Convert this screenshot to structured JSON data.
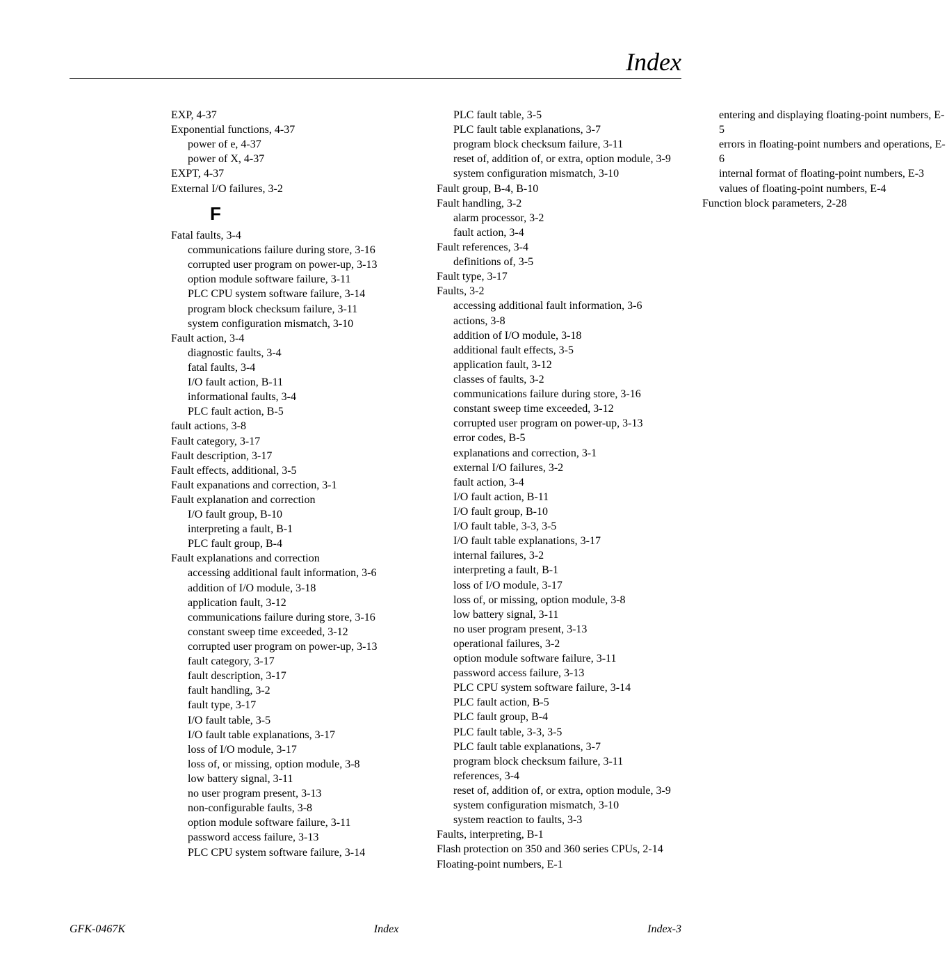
{
  "page": {
    "title": "Index",
    "footer_left": "GFK-0467K",
    "footer_center": "Index",
    "footer_right": "Index-3",
    "background_color": "#ffffff",
    "text_color": "#000000",
    "title_fontsize": 36,
    "body_fontsize": 16,
    "letter_fontsize": 26
  },
  "entries": [
    {
      "t": "entry",
      "text": "EXP, 4-37"
    },
    {
      "t": "entry",
      "text": "Exponential functions, 4-37"
    },
    {
      "t": "sub",
      "text": "power of e, 4-37"
    },
    {
      "t": "sub",
      "text": "power of X, 4-37"
    },
    {
      "t": "entry",
      "text": "EXPT, 4-37"
    },
    {
      "t": "entry",
      "text": "External I/O failures, 3-2"
    },
    {
      "t": "letter",
      "text": "F"
    },
    {
      "t": "entry",
      "text": "Fatal faults, 3-4"
    },
    {
      "t": "sub",
      "text": "communications failure during store, 3-16"
    },
    {
      "t": "sub",
      "text": "corrupted user program on power-up, 3-13"
    },
    {
      "t": "sub",
      "text": "option module software failure, 3-11"
    },
    {
      "t": "sub",
      "text": "PLC CPU system software failure, 3-14"
    },
    {
      "t": "sub",
      "text": "program block checksum failure, 3-11"
    },
    {
      "t": "sub",
      "text": "system configuration mismatch, 3-10"
    },
    {
      "t": "entry",
      "text": "Fault action, 3-4"
    },
    {
      "t": "sub",
      "text": "diagnostic faults, 3-4"
    },
    {
      "t": "sub",
      "text": "fatal faults, 3-4"
    },
    {
      "t": "sub",
      "text": "I/O fault action, B-11"
    },
    {
      "t": "sub",
      "text": "informational faults, 3-4"
    },
    {
      "t": "sub",
      "text": "PLC fault action, B-5"
    },
    {
      "t": "entry",
      "text": "fault actions, 3-8"
    },
    {
      "t": "entry",
      "text": "Fault category, 3-17"
    },
    {
      "t": "entry",
      "text": "Fault description, 3-17"
    },
    {
      "t": "entry",
      "text": "Fault effects, additional, 3-5"
    },
    {
      "t": "entry",
      "text": "Fault expanations and correction, 3-1"
    },
    {
      "t": "entry",
      "text": "Fault explanation and correction"
    },
    {
      "t": "sub",
      "text": "I/O fault group, B-10"
    },
    {
      "t": "sub",
      "text": "interpreting a fault, B-1"
    },
    {
      "t": "sub",
      "text": "PLC fault group, B-4"
    },
    {
      "t": "entry",
      "text": "Fault explanations and correction"
    },
    {
      "t": "sub",
      "text": "accessing additional fault information, 3-6"
    },
    {
      "t": "sub",
      "text": "addition of I/O module, 3-18"
    },
    {
      "t": "sub",
      "text": "application fault, 3-12"
    },
    {
      "t": "sub",
      "text": "communications failure during store, 3-16"
    },
    {
      "t": "sub",
      "text": "constant sweep time exceeded, 3-12"
    },
    {
      "t": "sub",
      "text": "corrupted user program on power-up, 3-13"
    },
    {
      "t": "sub",
      "text": "fault category, 3-17"
    },
    {
      "t": "sub",
      "text": "fault description, 3-17"
    },
    {
      "t": "sub",
      "text": "fault handling, 3-2"
    },
    {
      "t": "sub",
      "text": "fault type, 3-17"
    },
    {
      "t": "sub",
      "text": "I/O fault table, 3-5"
    },
    {
      "t": "sub",
      "text": "I/O fault table explanations, 3-17"
    },
    {
      "t": "sub",
      "text": "loss of I/O module, 3-17"
    },
    {
      "t": "sub",
      "text": "loss of, or missing, option module, 3-8"
    },
    {
      "t": "sub",
      "text": "low battery signal, 3-11"
    },
    {
      "t": "sub",
      "text": "no user program present, 3-13"
    },
    {
      "t": "sub",
      "text": "non-configurable faults, 3-8"
    },
    {
      "t": "sub",
      "text": "option module software failure, 3-11"
    },
    {
      "t": "sub",
      "text": "password access failure, 3-13"
    },
    {
      "t": "sub",
      "text": "PLC CPU system software failure, 3-14"
    },
    {
      "t": "sub",
      "text": "PLC fault table, 3-5"
    },
    {
      "t": "sub",
      "text": "PLC fault table explanations, 3-7"
    },
    {
      "t": "sub",
      "text": "program block checksum failure, 3-11"
    },
    {
      "t": "sub",
      "text": "reset of, addition of, or extra, option module, 3-9"
    },
    {
      "t": "sub",
      "text": "system configuration mismatch, 3-10"
    },
    {
      "t": "entry",
      "text": "Fault group, B-4, B-10"
    },
    {
      "t": "entry",
      "text": "Fault handling, 3-2"
    },
    {
      "t": "sub",
      "text": "alarm processor, 3-2"
    },
    {
      "t": "sub",
      "text": "fault action, 3-4"
    },
    {
      "t": "entry",
      "text": "Fault references, 3-4"
    },
    {
      "t": "sub",
      "text": "definitions of, 3-5"
    },
    {
      "t": "entry",
      "text": "Fault type, 3-17"
    },
    {
      "t": "entry",
      "text": "Faults, 3-2"
    },
    {
      "t": "sub",
      "text": "accessing additional fault information, 3-6"
    },
    {
      "t": "sub",
      "text": "actions, 3-8"
    },
    {
      "t": "sub",
      "text": "addition of I/O module, 3-18"
    },
    {
      "t": "sub",
      "text": "additional fault effects, 3-5"
    },
    {
      "t": "sub",
      "text": "application fault, 3-12"
    },
    {
      "t": "sub",
      "text": "classes of faults, 3-2"
    },
    {
      "t": "sub",
      "text": "communications failure during store, 3-16"
    },
    {
      "t": "sub",
      "text": "constant sweep time exceeded, 3-12"
    },
    {
      "t": "sub",
      "text": "corrupted user program on power-up, 3-13"
    },
    {
      "t": "sub",
      "text": "error codes, B-5"
    },
    {
      "t": "sub",
      "text": "explanations and correction, 3-1"
    },
    {
      "t": "sub",
      "text": "external I/O failures, 3-2"
    },
    {
      "t": "sub",
      "text": "fault action, 3-4"
    },
    {
      "t": "sub",
      "text": "I/O fault action, B-11"
    },
    {
      "t": "sub",
      "text": "I/O fault group, B-10"
    },
    {
      "t": "sub",
      "text": "I/O fault table, 3-3, 3-5"
    },
    {
      "t": "sub",
      "text": "I/O fault table explanations, 3-17"
    },
    {
      "t": "sub",
      "text": "internal failures, 3-2"
    },
    {
      "t": "sub",
      "text": "interpreting a fault, B-1"
    },
    {
      "t": "sub",
      "text": "loss of I/O module, 3-17"
    },
    {
      "t": "sub",
      "text": "loss of, or missing, option module, 3-8"
    },
    {
      "t": "sub",
      "text": "low battery signal, 3-11"
    },
    {
      "t": "sub",
      "text": "no user program present, 3-13"
    },
    {
      "t": "sub",
      "text": "operational failures, 3-2"
    },
    {
      "t": "sub",
      "text": "option module software failure, 3-11"
    },
    {
      "t": "sub",
      "text": "password access failure, 3-13"
    },
    {
      "t": "sub",
      "text": "PLC CPU system software failure, 3-14"
    },
    {
      "t": "sub",
      "text": "PLC fault action, B-5"
    },
    {
      "t": "sub",
      "text": "PLC fault group, B-4"
    },
    {
      "t": "sub",
      "text": "PLC fault table, 3-3, 3-5"
    },
    {
      "t": "sub",
      "text": "PLC fault table explanations, 3-7"
    },
    {
      "t": "sub",
      "text": "program block checksum failure, 3-11"
    },
    {
      "t": "sub",
      "text": "references, 3-4"
    },
    {
      "t": "sub",
      "text": "reset of, addition of, or extra, option module, 3-9"
    },
    {
      "t": "sub",
      "text": "system configuration mismatch, 3-10"
    },
    {
      "t": "sub",
      "text": "system reaction to faults, 3-3"
    },
    {
      "t": "entry",
      "text": "Faults, interpreting, B-1"
    },
    {
      "t": "entry",
      "text": "Flash protection on 350 and 360 series CPUs, 2-14",
      "wrap": true
    },
    {
      "t": "entry",
      "text": "Floating-point numbers, E-1"
    },
    {
      "t": "sub",
      "text": "entering and displaying floating-point numbers, E-5"
    },
    {
      "t": "sub",
      "text": "errors in floating-point numbers and operations, E-6"
    },
    {
      "t": "sub",
      "text": "internal format of floating-point numbers, E-3"
    },
    {
      "t": "sub",
      "text": "values of floating-point numbers, E-4"
    },
    {
      "t": "entry",
      "text": "Function block parameters, 2-28"
    }
  ]
}
